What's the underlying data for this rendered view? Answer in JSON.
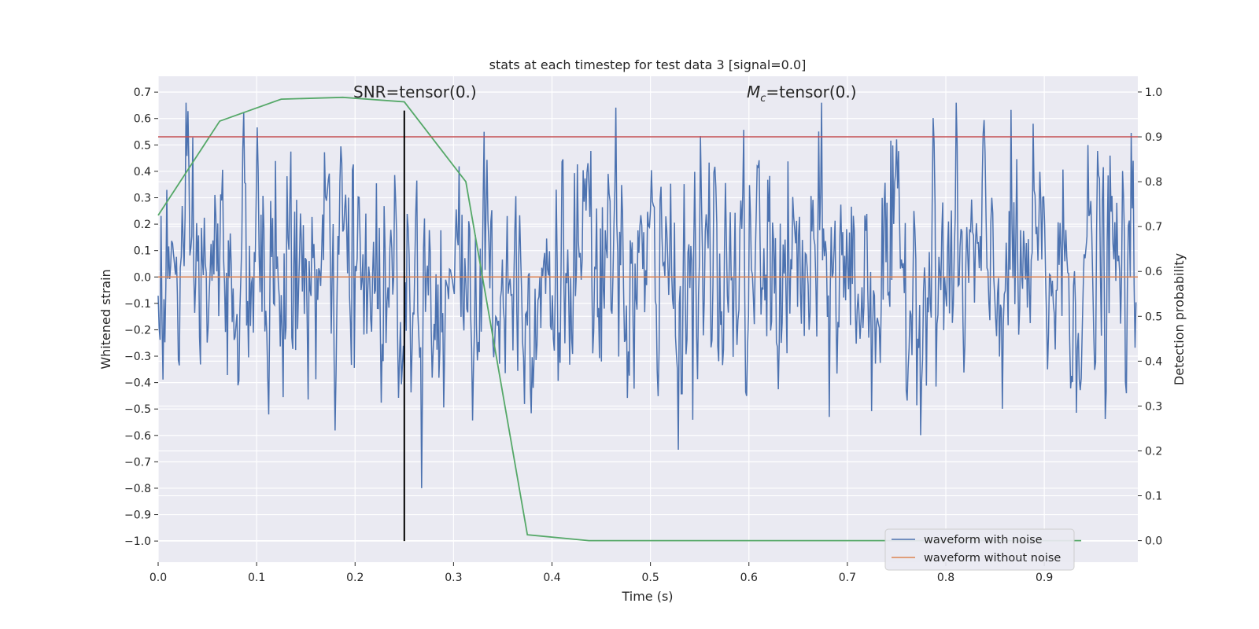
{
  "chart_data": {
    "type": "line",
    "title": "stats at each timestep for test data 3 [signal=0.0]",
    "xlabel": "Time (s)",
    "ylabel": "Whitened strain",
    "y2label": "Detection probability",
    "xlim": [
      0.0,
      0.995
    ],
    "ylim": [
      -1.08,
      0.76
    ],
    "y2lim": [
      -0.048,
      1.035
    ],
    "x_ticks": [
      "0.0",
      "0.1",
      "0.2",
      "0.3",
      "0.4",
      "0.5",
      "0.6",
      "0.7",
      "0.8",
      "0.9"
    ],
    "x_tick_values": [
      0.0,
      0.1,
      0.2,
      0.3,
      0.4,
      0.5,
      0.6,
      0.7,
      0.8,
      0.9
    ],
    "y_ticks": [
      "0.7",
      "0.6",
      "0.5",
      "0.4",
      "0.3",
      "0.2",
      "0.1",
      "0.0",
      "−0.1",
      "−0.2",
      "−0.3",
      "−0.4",
      "−0.5",
      "−0.6",
      "−0.7",
      "−0.8",
      "−0.9",
      "−1.0"
    ],
    "y_tick_values": [
      0.7,
      0.6,
      0.5,
      0.4,
      0.3,
      0.2,
      0.1,
      0.0,
      -0.1,
      -0.2,
      -0.3,
      -0.4,
      -0.5,
      -0.6,
      -0.7,
      -0.8,
      -0.9,
      -1.0
    ],
    "y2_ticks": [
      "1.0",
      "0.9",
      "0.8",
      "0.7",
      "0.6",
      "0.5",
      "0.4",
      "0.3",
      "0.2",
      "0.1",
      "0.0"
    ],
    "y2_tick_values": [
      1.0,
      0.9,
      0.8,
      0.7,
      0.6,
      0.5,
      0.4,
      0.3,
      0.2,
      0.1,
      0.0
    ],
    "grid": true,
    "legend_position": "bottom-right",
    "annotations": [
      {
        "text": "SNR=tensor(0.)",
        "x": 0.26
      },
      {
        "text_italic": "M",
        "text_sub": "c",
        "text": "=tensor(0.)",
        "x": 0.66
      }
    ],
    "series": [
      {
        "name": "waveform with noise",
        "color": "#4c72b0",
        "axis": "left",
        "sample_rate": 1024,
        "amplitude_extremes": {
          "max": 0.66,
          "min": -1.0
        }
      },
      {
        "name": "waveform without noise",
        "color": "#dd8452",
        "axis": "left",
        "x": [
          0.0,
          0.995
        ],
        "y": [
          0.0,
          0.0
        ]
      },
      {
        "name": "",
        "color": "#55a868",
        "axis": "right",
        "x": [
          0.0,
          0.0625,
          0.125,
          0.1875,
          0.25,
          0.3125,
          0.375,
          0.4375,
          0.5,
          0.5625,
          0.625,
          0.6875,
          0.75,
          0.8125,
          0.875,
          0.9375
        ],
        "y": [
          0.725,
          0.935,
          0.984,
          0.988,
          0.978,
          0.8,
          0.013,
          0.0,
          0.0,
          0.0,
          0.0,
          0.0,
          0.0,
          0.0,
          0.0,
          0.0
        ]
      },
      {
        "name": "",
        "color": "#c44e52",
        "axis": "right",
        "type": "hline",
        "y": 0.9
      },
      {
        "name": "",
        "color": "#000000",
        "axis": "left",
        "type": "vline",
        "x": 0.25,
        "y_range": [
          -1.0,
          0.63
        ]
      }
    ]
  }
}
